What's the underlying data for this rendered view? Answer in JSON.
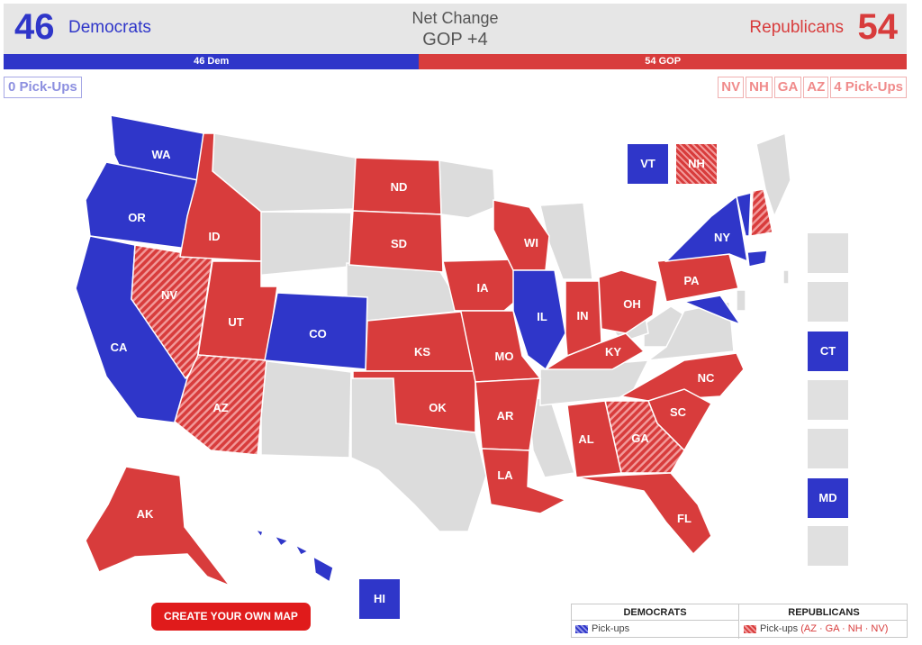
{
  "header": {
    "dem_count": "46",
    "dem_label": "Democrats",
    "net_title": "Net Change",
    "net_value": "GOP +4",
    "rep_label": "Republicans",
    "rep_count": "54"
  },
  "bar": {
    "dem_label": "46 Dem",
    "rep_label": "54 GOP"
  },
  "pickups": {
    "dem": "0 Pick-Ups",
    "rep_states": [
      "NV",
      "NH",
      "GA",
      "AZ"
    ],
    "rep": "4 Pick-Ups"
  },
  "states": [
    {
      "abbr": "WA",
      "party": "dem"
    },
    {
      "abbr": "OR",
      "party": "dem"
    },
    {
      "abbr": "CA",
      "party": "dem"
    },
    {
      "abbr": "NV",
      "party": "rep-pickup"
    },
    {
      "abbr": "ID",
      "party": "rep"
    },
    {
      "abbr": "UT",
      "party": "rep"
    },
    {
      "abbr": "AZ",
      "party": "rep-pickup"
    },
    {
      "abbr": "CO",
      "party": "dem"
    },
    {
      "abbr": "ND",
      "party": "rep"
    },
    {
      "abbr": "SD",
      "party": "rep"
    },
    {
      "abbr": "KS",
      "party": "rep"
    },
    {
      "abbr": "OK",
      "party": "rep"
    },
    {
      "abbr": "IA",
      "party": "rep"
    },
    {
      "abbr": "MO",
      "party": "rep"
    },
    {
      "abbr": "AR",
      "party": "rep"
    },
    {
      "abbr": "LA",
      "party": "rep"
    },
    {
      "abbr": "WI",
      "party": "rep"
    },
    {
      "abbr": "IL",
      "party": "dem"
    },
    {
      "abbr": "IN",
      "party": "rep"
    },
    {
      "abbr": "OH",
      "party": "rep"
    },
    {
      "abbr": "KY",
      "party": "rep"
    },
    {
      "abbr": "PA",
      "party": "rep"
    },
    {
      "abbr": "NY",
      "party": "dem"
    },
    {
      "abbr": "NC",
      "party": "rep"
    },
    {
      "abbr": "SC",
      "party": "rep"
    },
    {
      "abbr": "GA",
      "party": "rep-pickup"
    },
    {
      "abbr": "AL",
      "party": "rep"
    },
    {
      "abbr": "FL",
      "party": "rep"
    },
    {
      "abbr": "AK",
      "party": "rep"
    },
    {
      "abbr": "HI",
      "party": "dem"
    },
    {
      "abbr": "VT",
      "party": "dem"
    },
    {
      "abbr": "NH",
      "party": "rep-pickup"
    },
    {
      "abbr": "CT",
      "party": "dem"
    },
    {
      "abbr": "MD",
      "party": "dem"
    }
  ],
  "colors": {
    "dem": "#2f36c9",
    "rep": "#d83c3c",
    "none": "#dcdcdc",
    "border": "#ffffff"
  },
  "create_button": "CREATE YOUR OWN MAP",
  "legend": {
    "dem_head": "DEMOCRATS",
    "rep_head": "REPUBLICANS",
    "dem_row": "Pick-ups",
    "rep_row": "Pick-ups",
    "rep_states": "(AZ · GA · NH · NV)"
  }
}
